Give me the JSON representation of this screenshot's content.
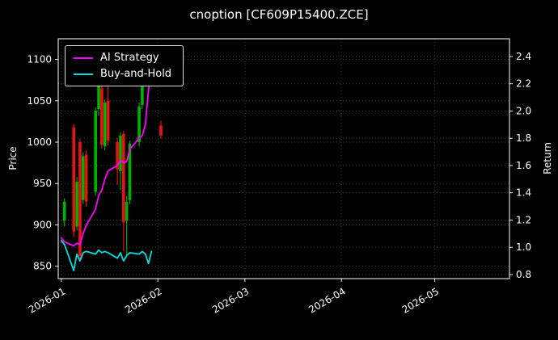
{
  "title": "cnoption [CF609P15400.ZCE]",
  "colors": {
    "background": "#000000",
    "text": "#ffffff",
    "grid": "#4a4a4a",
    "spine": "#ffffff",
    "up": "#00b300",
    "down": "#ee1111",
    "ai_strategy": "#ff00ff",
    "buy_and_hold": "#00dede"
  },
  "legend": {
    "items": [
      {
        "label": "AI Strategy",
        "color": "#ff00ff"
      },
      {
        "label": "Buy-and-Hold",
        "color": "#00dede"
      }
    ]
  },
  "axes": {
    "y_left": {
      "label": "Price",
      "ticks": [
        850,
        900,
        950,
        1000,
        1050,
        1100
      ],
      "range": [
        835,
        1125
      ]
    },
    "y_right": {
      "label": "Return",
      "ticks": [
        0.8,
        1.0,
        1.2,
        1.4,
        1.6,
        1.8,
        2.0,
        2.2,
        2.4
      ],
      "range": [
        0.77,
        2.53
      ]
    },
    "x": {
      "tick_labels": [
        "2026-01",
        "2026-02",
        "2026-03",
        "2026-04",
        "2026-05"
      ],
      "tick_days": [
        0,
        31,
        59,
        90,
        120
      ],
      "range_days": [
        -1,
        144
      ]
    }
  },
  "chart_data": {
    "type": "candlestick",
    "title": "cnoption [CF609P15400.ZCE]",
    "ylabel_left": "Price",
    "ylabel_right": "Return",
    "x_tick_labels": [
      "2026-01",
      "2026-02",
      "2026-03",
      "2026-04",
      "2026-05"
    ],
    "grid": true,
    "legend_position": "upper-left",
    "candles": [
      {
        "date": "2026-01-02",
        "day": 1,
        "open": 905,
        "high": 932,
        "low": 898,
        "close": 928
      },
      {
        "date": "2026-01-05",
        "day": 4,
        "open": 1018,
        "high": 1022,
        "low": 885,
        "close": 892
      },
      {
        "date": "2026-01-06",
        "day": 5,
        "open": 898,
        "high": 958,
        "low": 893,
        "close": 952
      },
      {
        "date": "2026-01-07",
        "day": 6,
        "open": 1000,
        "high": 1004,
        "low": 856,
        "close": 862
      },
      {
        "date": "2026-01-08",
        "day": 7,
        "open": 930,
        "high": 988,
        "low": 925,
        "close": 983
      },
      {
        "date": "2026-01-09",
        "day": 8,
        "open": 985,
        "high": 990,
        "low": 922,
        "close": 928
      },
      {
        "date": "2026-01-12",
        "day": 11,
        "open": 940,
        "high": 1042,
        "low": 935,
        "close": 1038
      },
      {
        "date": "2026-01-13",
        "day": 12,
        "open": 1040,
        "high": 1076,
        "low": 1032,
        "close": 1068
      },
      {
        "date": "2026-01-14",
        "day": 13,
        "open": 1065,
        "high": 1070,
        "low": 992,
        "close": 997
      },
      {
        "date": "2026-01-15",
        "day": 14,
        "open": 995,
        "high": 1052,
        "low": 990,
        "close": 1048
      },
      {
        "date": "2026-01-16",
        "day": 15,
        "open": 1050,
        "high": 1072,
        "low": 996,
        "close": 1002
      },
      {
        "date": "2026-01-19",
        "day": 18,
        "open": 1000,
        "high": 1005,
        "low": 948,
        "close": 967
      },
      {
        "date": "2026-01-20",
        "day": 19,
        "open": 965,
        "high": 1012,
        "low": 942,
        "close": 1008
      },
      {
        "date": "2026-01-21",
        "day": 20,
        "open": 1010,
        "high": 1014,
        "low": 868,
        "close": 903
      },
      {
        "date": "2026-01-22",
        "day": 21,
        "open": 905,
        "high": 935,
        "low": 862,
        "close": 928
      },
      {
        "date": "2026-01-23",
        "day": 22,
        "open": 930,
        "high": 1002,
        "low": 925,
        "close": 998
      },
      {
        "date": "2026-01-26",
        "day": 25,
        "open": 1000,
        "high": 1048,
        "low": 995,
        "close": 1043
      },
      {
        "date": "2026-01-27",
        "day": 26,
        "open": 1045,
        "high": 1090,
        "low": 1040,
        "close": 1085
      },
      {
        "date": "2026-01-28",
        "day": 27,
        "open": 1082,
        "high": 1092,
        "low": 1078,
        "close": 1086
      },
      {
        "date": "2026-02-02",
        "day": 32,
        "open": 1020,
        "high": 1026,
        "low": 1004,
        "close": 1008
      }
    ],
    "series": [
      {
        "name": "AI Strategy",
        "axis": "right",
        "color": "#ff00ff",
        "x_days": [
          0,
          1,
          4,
          5,
          6,
          7,
          8,
          11,
          12,
          13,
          14,
          15,
          18,
          19,
          20,
          21,
          22,
          25,
          26,
          27,
          28,
          29
        ],
        "values": [
          1.07,
          1.04,
          1.01,
          1.03,
          1.02,
          1.1,
          1.16,
          1.28,
          1.38,
          1.42,
          1.5,
          1.56,
          1.6,
          1.64,
          1.62,
          1.63,
          1.72,
          1.8,
          1.82,
          1.9,
          2.15,
          2.35
        ]
      },
      {
        "name": "Buy-and-Hold",
        "axis": "right",
        "color": "#00dede",
        "x_days": [
          0,
          1,
          4,
          5,
          6,
          7,
          8,
          11,
          12,
          13,
          14,
          15,
          18,
          19,
          20,
          21,
          22,
          25,
          26,
          27,
          28,
          29
        ],
        "values": [
          1.05,
          1.02,
          0.83,
          0.95,
          0.9,
          0.96,
          0.97,
          0.95,
          0.98,
          0.96,
          0.97,
          0.96,
          0.92,
          0.96,
          0.9,
          0.94,
          0.96,
          0.95,
          0.97,
          0.95,
          0.88,
          0.97
        ]
      }
    ]
  }
}
